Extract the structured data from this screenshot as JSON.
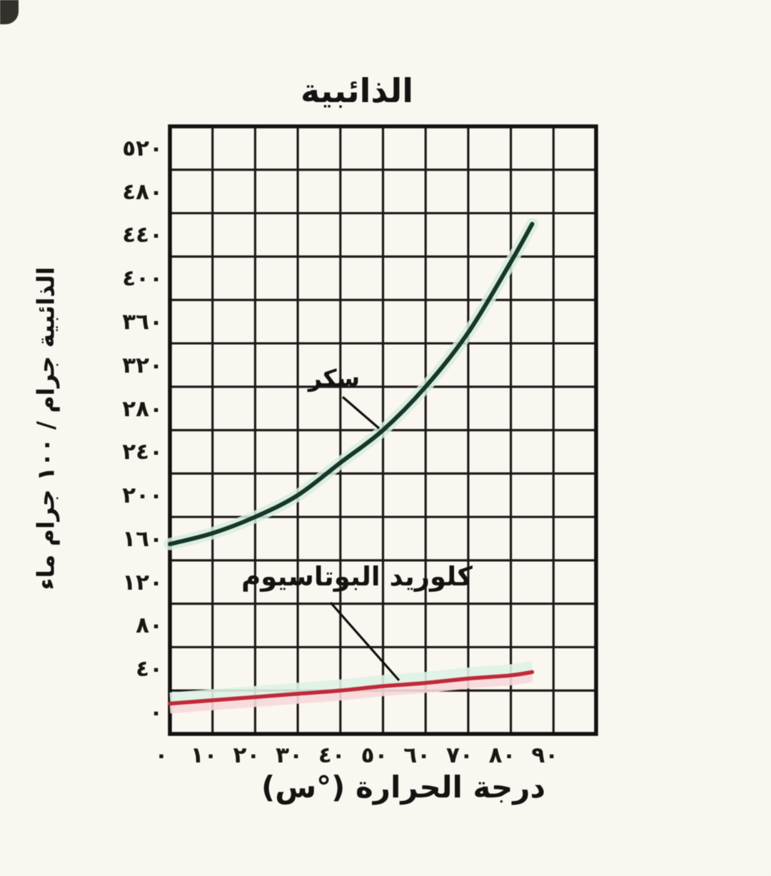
{
  "title": "الذائبية",
  "y_axis": {
    "title": "الذائبية جرام / ١٠٠ جرام ماء",
    "ticks": [
      "٥٢٠",
      "٤٨٠",
      "٤٤٠",
      "٤٠٠",
      "٣٦٠",
      "٣٢٠",
      "٢٨٠",
      "٢٤٠",
      "٢٠٠",
      "١٦٠",
      "١٢٠",
      "٨٠",
      "٤٠",
      "٠"
    ]
  },
  "x_axis": {
    "title": "درجة الحرارة (°س)",
    "ticks": [
      "٠",
      "١٠",
      "٢٠",
      "٣٠",
      "٤٠",
      "٥٠",
      "٦٠",
      "٧٠",
      "٨٠",
      "٩٠"
    ]
  },
  "annotations": {
    "sugar_label": "سكر",
    "kcl_label": "كلوريد البوتاسيوم"
  },
  "colors": {
    "background": "#f5f3ef",
    "grid": "#1f1d1b",
    "border": "#161412",
    "text": "#171513",
    "sugar_line": "#17382c",
    "sugar_halo": "#d2eadb",
    "kcl_line": "#c02a3a",
    "kcl_halo_mint": "#d9eee2",
    "kcl_halo_pink": "#f4d6d8"
  },
  "chart_data": {
    "type": "line",
    "title": "الذائبية",
    "xlabel": "درجة الحرارة (°س)",
    "ylabel": "الذائبية جرام / ١٠٠ جرام ماء",
    "xlim": [
      0,
      100
    ],
    "ylim": [
      0,
      560
    ],
    "x_tick_step": 10,
    "y_tick_step": 40,
    "x_ticks_labeled": [
      0,
      10,
      20,
      30,
      40,
      50,
      60,
      70,
      80,
      90
    ],
    "y_ticks_labeled": [
      520,
      480,
      440,
      400,
      360,
      320,
      280,
      240,
      200,
      160,
      120,
      80,
      40,
      0
    ],
    "numerals": "arabic-indic",
    "grid": true,
    "legend_position": "inline-annotations",
    "series": [
      {
        "id": "sugar",
        "name": "سكر",
        "color": "#17382c",
        "x": [
          0,
          10,
          20,
          30,
          40,
          50,
          60,
          70,
          80,
          85
        ],
        "y": [
          175,
          185,
          200,
          220,
          250,
          280,
          320,
          370,
          435,
          470
        ]
      },
      {
        "id": "potassium-chloride",
        "name": "كلوريد البوتاسيوم",
        "color": "#c02a3a",
        "x": [
          0,
          10,
          20,
          30,
          40,
          50,
          60,
          70,
          80,
          85
        ],
        "y": [
          28,
          31,
          34,
          37,
          40,
          44,
          47,
          51,
          54,
          57
        ]
      }
    ]
  }
}
